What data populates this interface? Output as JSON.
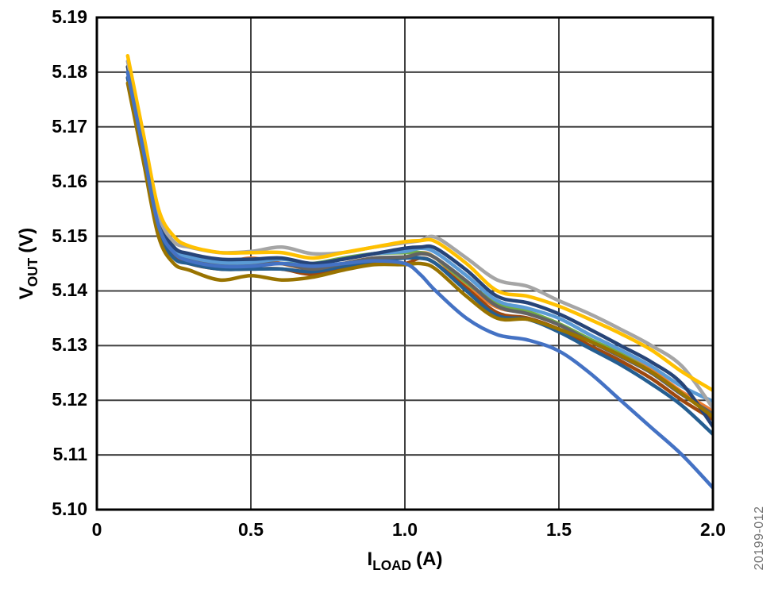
{
  "figure": {
    "watermark": "20199-012"
  },
  "chart_data": {
    "type": "line",
    "title": "",
    "xlabel_parts": {
      "main": "I",
      "sub": "LOAD",
      "unit": "(A)"
    },
    "ylabel_parts": {
      "main": "V",
      "sub": "OUT",
      "unit": "(V)"
    },
    "xlim": [
      0,
      2.0
    ],
    "ylim": [
      5.1,
      5.19
    ],
    "x_ticks": [
      "0",
      "0.5",
      "1.0",
      "1.5",
      "2.0"
    ],
    "y_ticks": [
      "5.19",
      "5.18",
      "5.17",
      "5.16",
      "5.15",
      "5.14",
      "5.13",
      "5.12",
      "5.11",
      "5.10"
    ],
    "grid": true,
    "legend": "none",
    "x": [
      0.1,
      0.15,
      0.2,
      0.25,
      0.3,
      0.4,
      0.5,
      0.6,
      0.7,
      0.8,
      0.9,
      1.0,
      1.05,
      1.1,
      1.2,
      1.3,
      1.4,
      1.5,
      1.6,
      1.7,
      1.8,
      1.9,
      2.0
    ],
    "series": [
      {
        "id": "line-1",
        "color": "#ED7D31",
        "values": [
          5.181,
          5.167,
          5.153,
          5.148,
          5.146,
          5.145,
          5.146,
          5.145,
          5.144,
          5.145,
          5.146,
          5.146,
          5.147,
          5.146,
          5.141,
          5.137,
          5.136,
          5.134,
          5.131,
          5.1285,
          5.1255,
          5.1215,
          5.118
        ]
      },
      {
        "id": "line-2",
        "color": "#9E480E",
        "values": [
          5.179,
          5.165,
          5.151,
          5.1465,
          5.145,
          5.144,
          5.144,
          5.144,
          5.143,
          5.144,
          5.145,
          5.145,
          5.146,
          5.145,
          5.1405,
          5.136,
          5.135,
          5.133,
          5.13,
          5.1272,
          5.124,
          5.12,
          5.1165
        ]
      },
      {
        "id": "line-3",
        "color": "#70AD47",
        "values": [
          5.181,
          5.167,
          5.153,
          5.148,
          5.146,
          5.145,
          5.145,
          5.145,
          5.145,
          5.146,
          5.1468,
          5.147,
          5.147,
          5.146,
          5.1415,
          5.1378,
          5.1362,
          5.134,
          5.1312,
          5.1285,
          5.1252,
          5.1212,
          5.117
        ]
      },
      {
        "id": "line-4",
        "color": "#255E91",
        "values": [
          5.179,
          5.165,
          5.151,
          5.146,
          5.145,
          5.144,
          5.144,
          5.144,
          5.1435,
          5.1445,
          5.1455,
          5.146,
          5.146,
          5.145,
          5.14,
          5.1355,
          5.1348,
          5.1325,
          5.1295,
          5.1265,
          5.123,
          5.119,
          5.1138
        ]
      },
      {
        "id": "line-5",
        "color": "#636363",
        "values": [
          5.18,
          5.166,
          5.152,
          5.147,
          5.146,
          5.145,
          5.145,
          5.145,
          5.144,
          5.145,
          5.146,
          5.1462,
          5.1468,
          5.146,
          5.1418,
          5.1372,
          5.1358,
          5.1338,
          5.1308,
          5.128,
          5.125,
          5.121,
          5.1175
        ]
      },
      {
        "id": "line-6",
        "color": "#5B9BD5",
        "values": [
          5.18,
          5.166,
          5.152,
          5.1475,
          5.1462,
          5.1452,
          5.1452,
          5.1458,
          5.145,
          5.1458,
          5.1468,
          5.1472,
          5.1478,
          5.147,
          5.1428,
          5.1382,
          5.1368,
          5.135,
          5.132,
          5.1292,
          5.1262,
          5.1225,
          5.1198
        ]
      },
      {
        "id": "line-7",
        "color": "#264478",
        "values": [
          5.181,
          5.167,
          5.153,
          5.148,
          5.1468,
          5.1458,
          5.1458,
          5.146,
          5.145,
          5.1458,
          5.1468,
          5.1478,
          5.148,
          5.1478,
          5.1438,
          5.139,
          5.1378,
          5.1358,
          5.133,
          5.13,
          5.127,
          5.123,
          5.1152
        ]
      },
      {
        "id": "line-8",
        "color": "#A5A5A5",
        "values": [
          5.182,
          5.168,
          5.154,
          5.149,
          5.148,
          5.147,
          5.1472,
          5.148,
          5.1468,
          5.147,
          5.148,
          5.1488,
          5.1492,
          5.1498,
          5.146,
          5.142,
          5.1408,
          5.1382,
          5.1358,
          5.133,
          5.13,
          5.1262,
          5.1186
        ]
      },
      {
        "id": "line-9",
        "color": "#997300",
        "values": [
          5.178,
          5.164,
          5.15,
          5.145,
          5.1438,
          5.142,
          5.1428,
          5.142,
          5.1425,
          5.1438,
          5.1448,
          5.1448,
          5.145,
          5.144,
          5.139,
          5.135,
          5.1348,
          5.133,
          5.1308,
          5.1282,
          5.1252,
          5.1212,
          5.117
        ]
      },
      {
        "id": "line-10",
        "color": "#FFC000",
        "values": [
          5.183,
          5.169,
          5.155,
          5.15,
          5.1482,
          5.147,
          5.147,
          5.147,
          5.146,
          5.147,
          5.148,
          5.149,
          5.1492,
          5.149,
          5.145,
          5.14,
          5.139,
          5.1372,
          5.1348,
          5.1322,
          5.1292,
          5.1252,
          5.1218
        ]
      },
      {
        "id": "line-11",
        "color": "#4472C4",
        "values": [
          5.18,
          5.166,
          5.152,
          5.147,
          5.1455,
          5.1445,
          5.1445,
          5.145,
          5.1445,
          5.145,
          5.1455,
          5.145,
          5.143,
          5.14,
          5.135,
          5.132,
          5.131,
          5.129,
          5.125,
          5.12,
          5.115,
          5.11,
          5.104
        ]
      }
    ]
  }
}
